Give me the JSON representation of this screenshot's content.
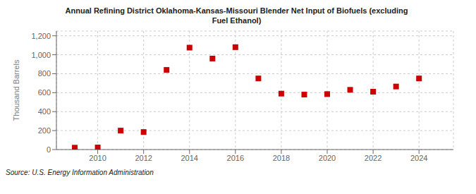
{
  "chart_data": {
    "type": "scatter",
    "title": "Annual Refining District Oklahoma-Kansas-Missouri Blender Net Input of Biofuels (excluding\nFuel Ethanol)",
    "ylabel": "Thousand Barrels",
    "annotations": [
      "Source: U.S. Energy Information Administration"
    ],
    "x": [
      2009,
      2010,
      2011,
      2012,
      2013,
      2014,
      2015,
      2016,
      2017,
      2018,
      2019,
      2020,
      2021,
      2022,
      2023,
      2024
    ],
    "values": [
      20,
      22,
      200,
      185,
      840,
      1075,
      960,
      1080,
      750,
      590,
      580,
      585,
      630,
      610,
      665,
      750
    ],
    "color": "#cc0000",
    "marker": "square",
    "xlim": [
      2008.2,
      2025.5
    ],
    "xticks": [
      2010,
      2012,
      2014,
      2016,
      2018,
      2020,
      2022,
      2024
    ],
    "ylim": [
      0,
      1250
    ],
    "yticks": [
      0,
      200,
      400,
      600,
      800,
      {
        "value": 1000,
        "label": "1,000"
      },
      {
        "value": 1200,
        "label": "1,200"
      }
    ],
    "grid": true
  }
}
